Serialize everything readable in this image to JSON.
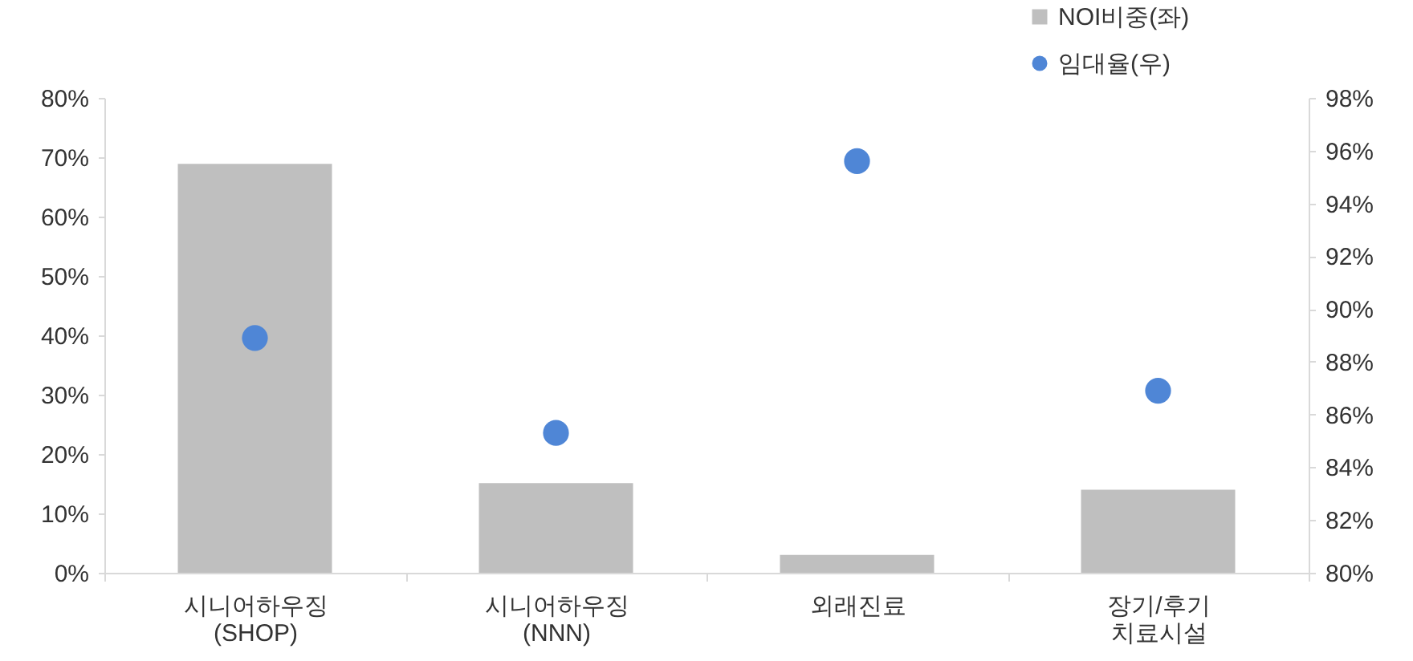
{
  "chart_data": {
    "type": "bar",
    "categories": [
      "시니어하우징\n(SHOP)",
      "시니어하우징\n(NNN)",
      "외래진료",
      "장기/후기\n치료시설"
    ],
    "series": [
      {
        "name": "NOI비중(좌)",
        "color": "#bfbfbf",
        "values": [
          68.9,
          15.1,
          3,
          14
        ]
      },
      {
        "name": "임대율(우)",
        "type": "scatter",
        "axis": "y2",
        "color": "#4f86d6",
        "values": [
          88.9,
          85.3,
          95.6,
          86.9
        ]
      }
    ],
    "ylim": [
      0,
      80
    ],
    "yticks": [
      {
        "value": 0,
        "label": "0%"
      },
      {
        "value": 10,
        "label": "10%"
      },
      {
        "value": 20,
        "label": "20%"
      },
      {
        "value": 30,
        "label": "30%"
      },
      {
        "value": 40,
        "label": "40%"
      },
      {
        "value": 50,
        "label": "50%"
      },
      {
        "value": 60,
        "label": "60%"
      },
      {
        "value": 70,
        "label": "70%"
      },
      {
        "value": 80,
        "label": "80%"
      }
    ],
    "y2lim": [
      80,
      98
    ],
    "y2ticks": [
      {
        "value": 80,
        "label": "80%"
      },
      {
        "value": 82,
        "label": "82%"
      },
      {
        "value": 84,
        "label": "84%"
      },
      {
        "value": 86,
        "label": "86%"
      },
      {
        "value": 88,
        "label": "88%"
      },
      {
        "value": 90,
        "label": "90%"
      },
      {
        "value": 92,
        "label": "92%"
      },
      {
        "value": 94,
        "label": "94%"
      },
      {
        "value": 96,
        "label": "96%"
      },
      {
        "value": 98,
        "label": "98%"
      }
    ],
    "legend": "top right",
    "grid": false,
    "marker": "circle"
  }
}
